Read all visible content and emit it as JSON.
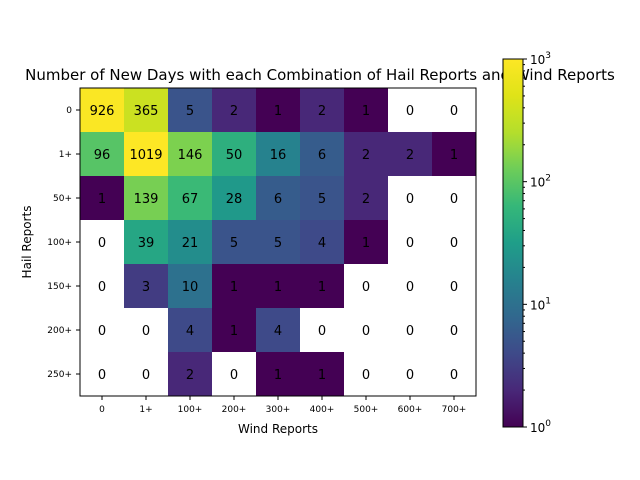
{
  "chart_data": {
    "type": "heatmap",
    "title": "Number of New Days with each Combination of Hail Reports and Wind Reports",
    "xlabel": "Wind Reports",
    "ylabel": "Hail Reports",
    "x_categories": [
      "0",
      "1+",
      "100+",
      "200+",
      "300+",
      "400+",
      "500+",
      "600+",
      "700+"
    ],
    "y_categories": [
      "0",
      "1+",
      "50+",
      "100+",
      "150+",
      "200+",
      "250+"
    ],
    "values": [
      [
        926,
        365,
        5,
        2,
        1,
        2,
        1,
        0,
        0
      ],
      [
        96,
        1019,
        146,
        50,
        16,
        6,
        2,
        2,
        1
      ],
      [
        1,
        139,
        67,
        28,
        6,
        5,
        2,
        0,
        0
      ],
      [
        0,
        39,
        21,
        5,
        5,
        4,
        1,
        0,
        0
      ],
      [
        0,
        3,
        10,
        1,
        1,
        1,
        0,
        0,
        0
      ],
      [
        0,
        0,
        4,
        1,
        4,
        0,
        0,
        0,
        0
      ],
      [
        0,
        0,
        2,
        0,
        1,
        1,
        0,
        0,
        0
      ]
    ],
    "color_scale": "log",
    "colormap": "viridis",
    "zero_color": "#ffffff",
    "colorbar": {
      "range": [
        1,
        1000
      ],
      "ticks": [
        {
          "value": 1,
          "base": "10",
          "exp": "0"
        },
        {
          "value": 10,
          "base": "10",
          "exp": "1"
        },
        {
          "value": 100,
          "base": "10",
          "exp": "2"
        },
        {
          "value": 1000,
          "base": "10",
          "exp": "3"
        }
      ]
    },
    "grid": false
  }
}
